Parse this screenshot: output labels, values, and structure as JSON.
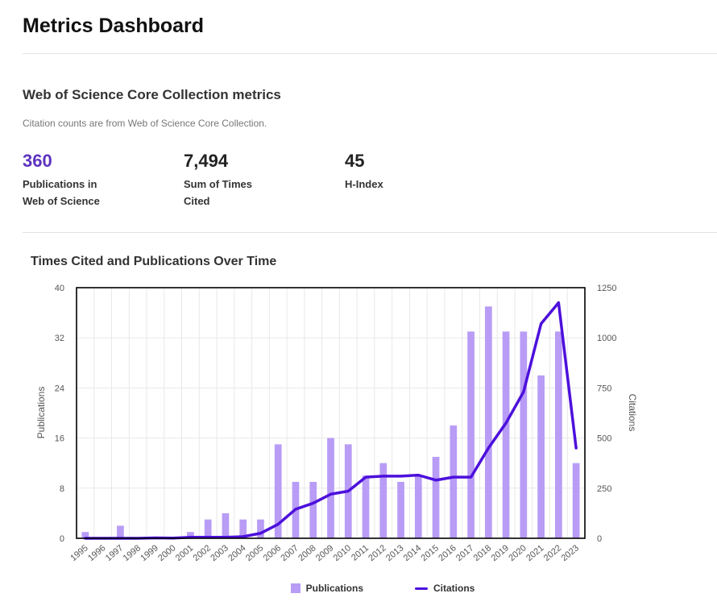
{
  "page": {
    "title": "Metrics Dashboard"
  },
  "section": {
    "title": "Web of Science Core Collection metrics",
    "note": "Citation counts are from Web of Science Core Collection."
  },
  "metrics": [
    {
      "value": "360",
      "label_line1": "Publications in",
      "label_line2": "Web of Science"
    },
    {
      "value": "7,494",
      "label_line1": "Sum of Times",
      "label_line2": "Cited"
    },
    {
      "value": "45",
      "label_line1": "H-Index",
      "label_line2": ""
    }
  ],
  "colors": {
    "accent": "#5e33bf",
    "bar": "#b89cf5",
    "line": "#4c10dc"
  },
  "chart_data": {
    "type": "bar+line",
    "title": "Times Cited and Publications Over Time",
    "categories": [
      "1995",
      "1996",
      "1997",
      "1998",
      "1999",
      "2000",
      "2001",
      "2002",
      "2003",
      "2004",
      "2005",
      "2006",
      "2007",
      "2008",
      "2009",
      "2010",
      "2011",
      "2012",
      "2013",
      "2014",
      "2015",
      "2016",
      "2017",
      "2018",
      "2019",
      "2020",
      "2021",
      "2022",
      "2023"
    ],
    "series": [
      {
        "name": "Publications",
        "type": "bar",
        "axis": "left",
        "values": [
          1,
          0,
          2,
          0,
          0,
          0,
          1,
          3,
          4,
          3,
          3,
          15,
          9,
          9,
          16,
          15,
          10,
          12,
          9,
          10,
          13,
          18,
          33,
          37,
          33,
          33,
          26,
          33,
          12
        ]
      },
      {
        "name": "Citations",
        "type": "line",
        "axis": "right",
        "values": [
          0,
          0,
          0,
          0,
          2,
          1,
          5,
          5,
          5,
          8,
          25,
          70,
          145,
          175,
          220,
          235,
          305,
          310,
          310,
          315,
          290,
          305,
          305,
          450,
          575,
          730,
          1070,
          1175,
          450
        ]
      }
    ],
    "ylabel_left": "Publications",
    "ylabel_right": "Citations",
    "ylim_left": [
      0,
      40
    ],
    "ylim_right": [
      0,
      1250
    ],
    "yticks_left": [
      "0",
      "8",
      "16",
      "24",
      "32",
      "40"
    ],
    "yticks_right": [
      "0",
      "250",
      "500",
      "750",
      "1000",
      "1250"
    ],
    "legend": [
      "Publications",
      "Citations"
    ],
    "legend_position": "bottom-center",
    "grid": true
  }
}
